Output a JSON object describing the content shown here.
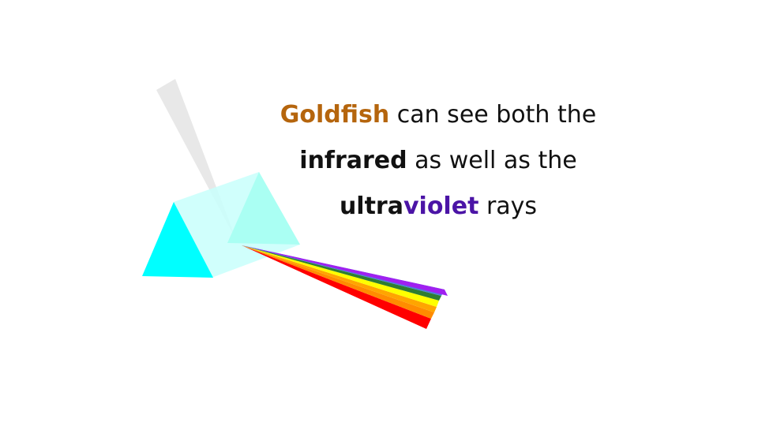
{
  "caption": {
    "line1": {
      "strong": "Goldfish",
      "rest": " can see both the"
    },
    "line2": {
      "strong": "infrared",
      "rest": " as well as the"
    },
    "line3": {
      "strong_a": "ultra",
      "strong_b": "violet",
      "rest": " rays"
    }
  },
  "colors": {
    "goldfish": "#b5650d",
    "infrared": "#111111",
    "ultra": "#111111",
    "violet": "#4b14a6",
    "body_text": "#111111",
    "prism_front": "#00ffff",
    "prism_glass": "#c8fffb",
    "prism_back": "#a8fff2",
    "incoming_beam": "#e6e6e6",
    "spectrum": [
      "#a020f0",
      "#4a7fd8",
      "#2e7d32",
      "#ffff00",
      "#ffa500",
      "#ff8c00",
      "#ff0000"
    ]
  },
  "icons": [
    "prism-icon",
    "light-beam-icon",
    "spectrum-icon"
  ]
}
